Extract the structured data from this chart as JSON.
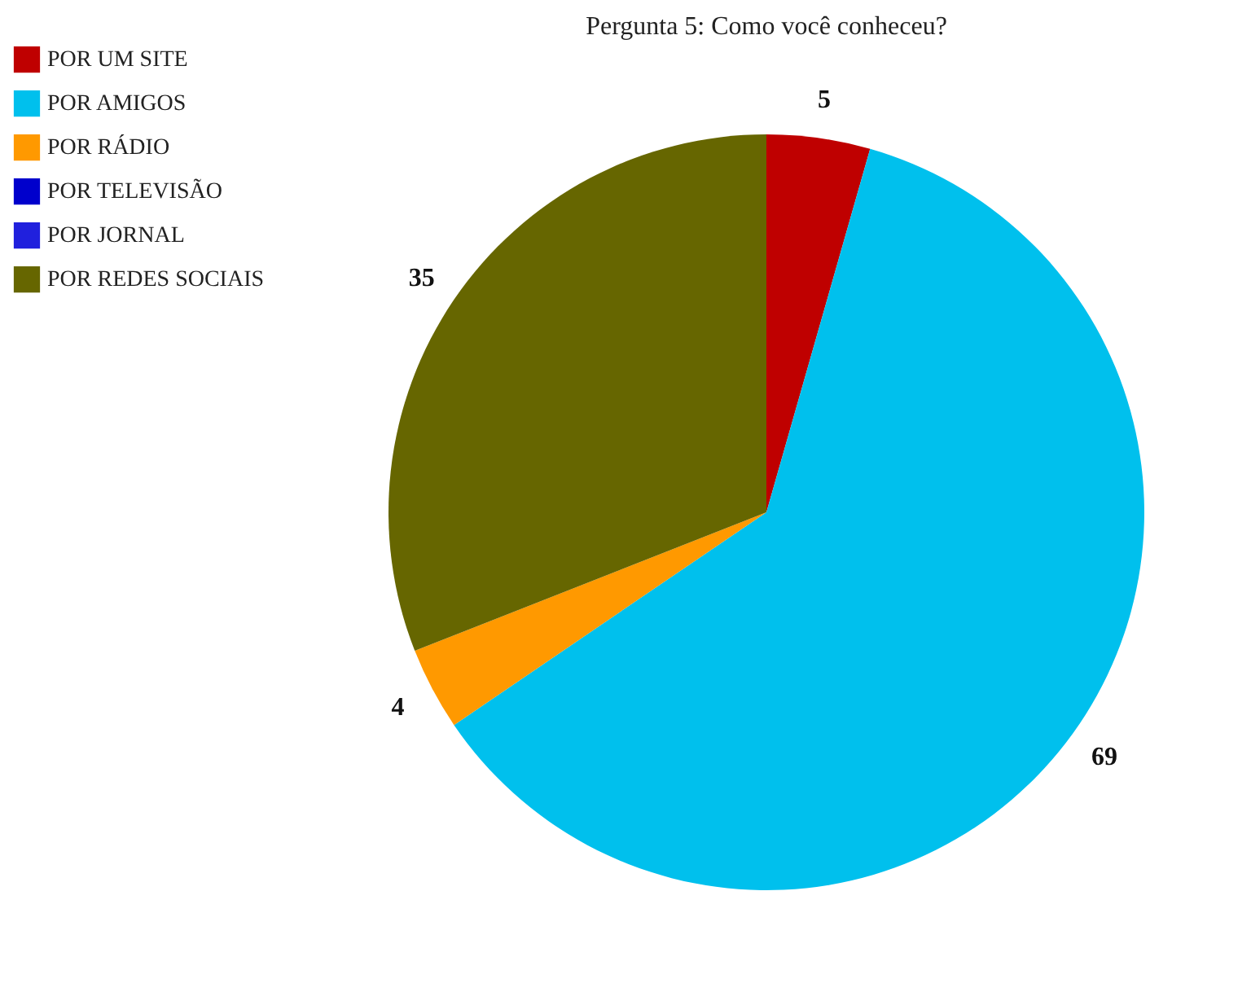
{
  "chart_data": {
    "type": "pie",
    "title": "Pergunta 5: Como você conheceu?",
    "categories": [
      "POR UM SITE",
      "POR AMIGOS",
      "POR RÁDIO",
      "POR TELEVISÃO",
      "POR JORNAL",
      "POR REDES SOCIAIS"
    ],
    "values": [
      5,
      69,
      4,
      0,
      0,
      35
    ],
    "colors": [
      "#bf0000",
      "#00c0ed",
      "#ff9900",
      "#0000cc",
      "#2020dd",
      "#666600"
    ],
    "value_labels": [
      "5",
      "69",
      "4",
      null,
      null,
      "35"
    ],
    "legend": "left"
  }
}
